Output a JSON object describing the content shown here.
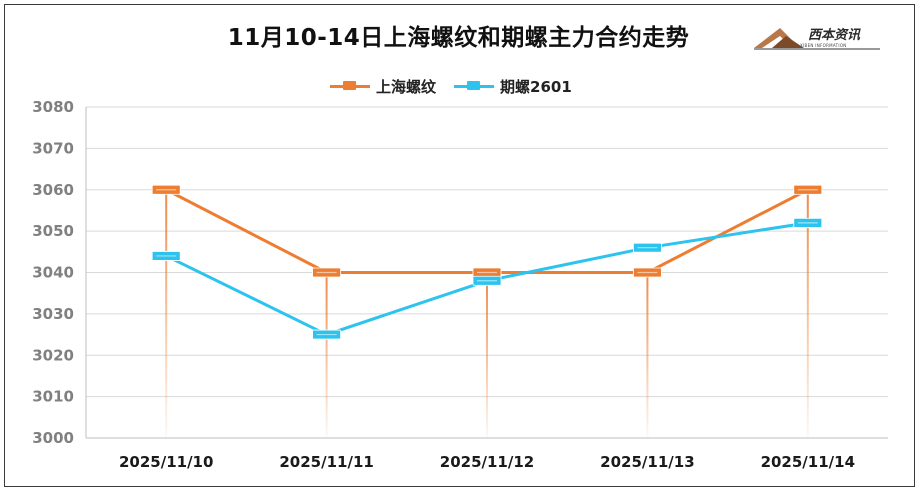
{
  "title": "11月10-14日上海螺纹和期螺主力合约走势",
  "logo": {
    "name": "西本资讯",
    "subtitle": "XIBEN INFORMATION"
  },
  "colors": {
    "series1": "#ED7D31",
    "series2": "#2CC3EE",
    "grid": "#d9d9d9",
    "axis": "#bfbfbf"
  },
  "chart_data": {
    "type": "line",
    "categories": [
      "2025/11/10",
      "2025/11/11",
      "2025/11/12",
      "2025/11/13",
      "2025/11/14"
    ],
    "series": [
      {
        "name": "上海螺纹",
        "values": [
          3060,
          3040,
          3040,
          3040,
          3060
        ]
      },
      {
        "name": "期螺2601",
        "values": [
          3044,
          3025,
          3038,
          3046,
          3052
        ]
      }
    ],
    "ylim": [
      3000,
      3080
    ],
    "yticks": [
      3000,
      3010,
      3020,
      3030,
      3040,
      3050,
      3060,
      3070,
      3080
    ],
    "legend": "top-center",
    "grid": true,
    "drop_lines": "series1"
  }
}
